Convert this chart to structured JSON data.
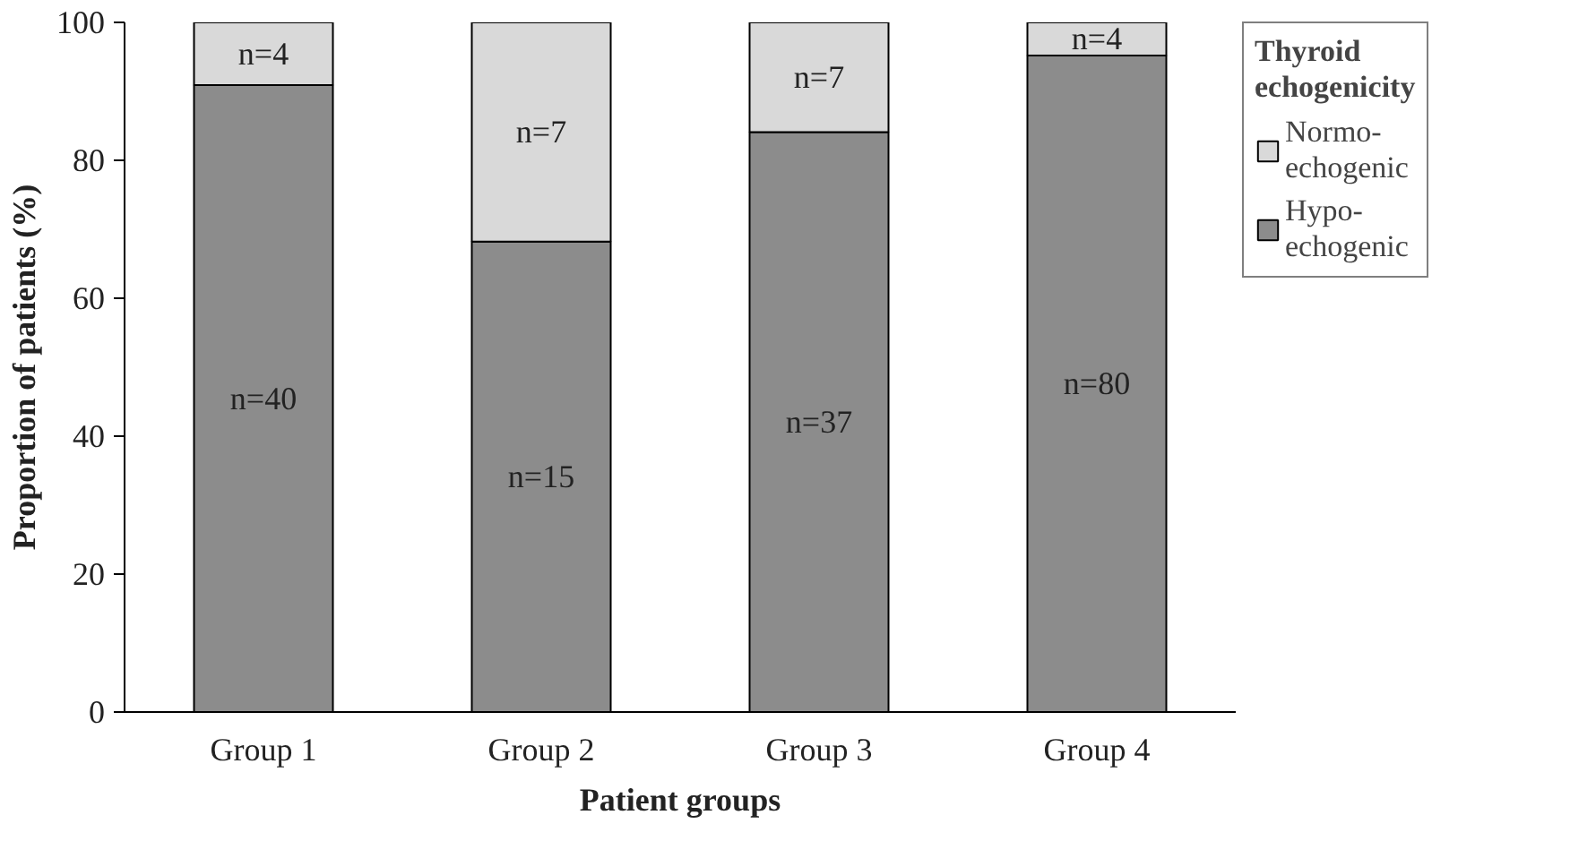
{
  "chart_data": {
    "type": "bar",
    "stacked": true,
    "xlabel": "Patient groups",
    "ylabel": "Proportion of patients (%)",
    "legend_title": "Thyroid echogenicity",
    "legend": "top right",
    "categories": [
      "Group 1",
      "Group 2",
      "Group 3",
      "Group 4"
    ],
    "series": [
      {
        "name": "Hypo-\nechogenic",
        "color": "#8c8c8c",
        "values": [
          90.9,
          68.2,
          84.1,
          95.2
        ]
      },
      {
        "name": "Normo-\nechogenic",
        "color": "#d9d9d9",
        "values": [
          9.1,
          31.8,
          15.9,
          4.8
        ]
      }
    ],
    "annotations": [
      "n=40",
      "n=15",
      "n=37",
      "n=80",
      "n=4",
      "n=7",
      "n=7",
      "n=4"
    ],
    "ylim": [
      0,
      100
    ],
    "yticks": [
      0,
      20,
      40,
      60,
      80,
      100
    ],
    "grid": false
  }
}
